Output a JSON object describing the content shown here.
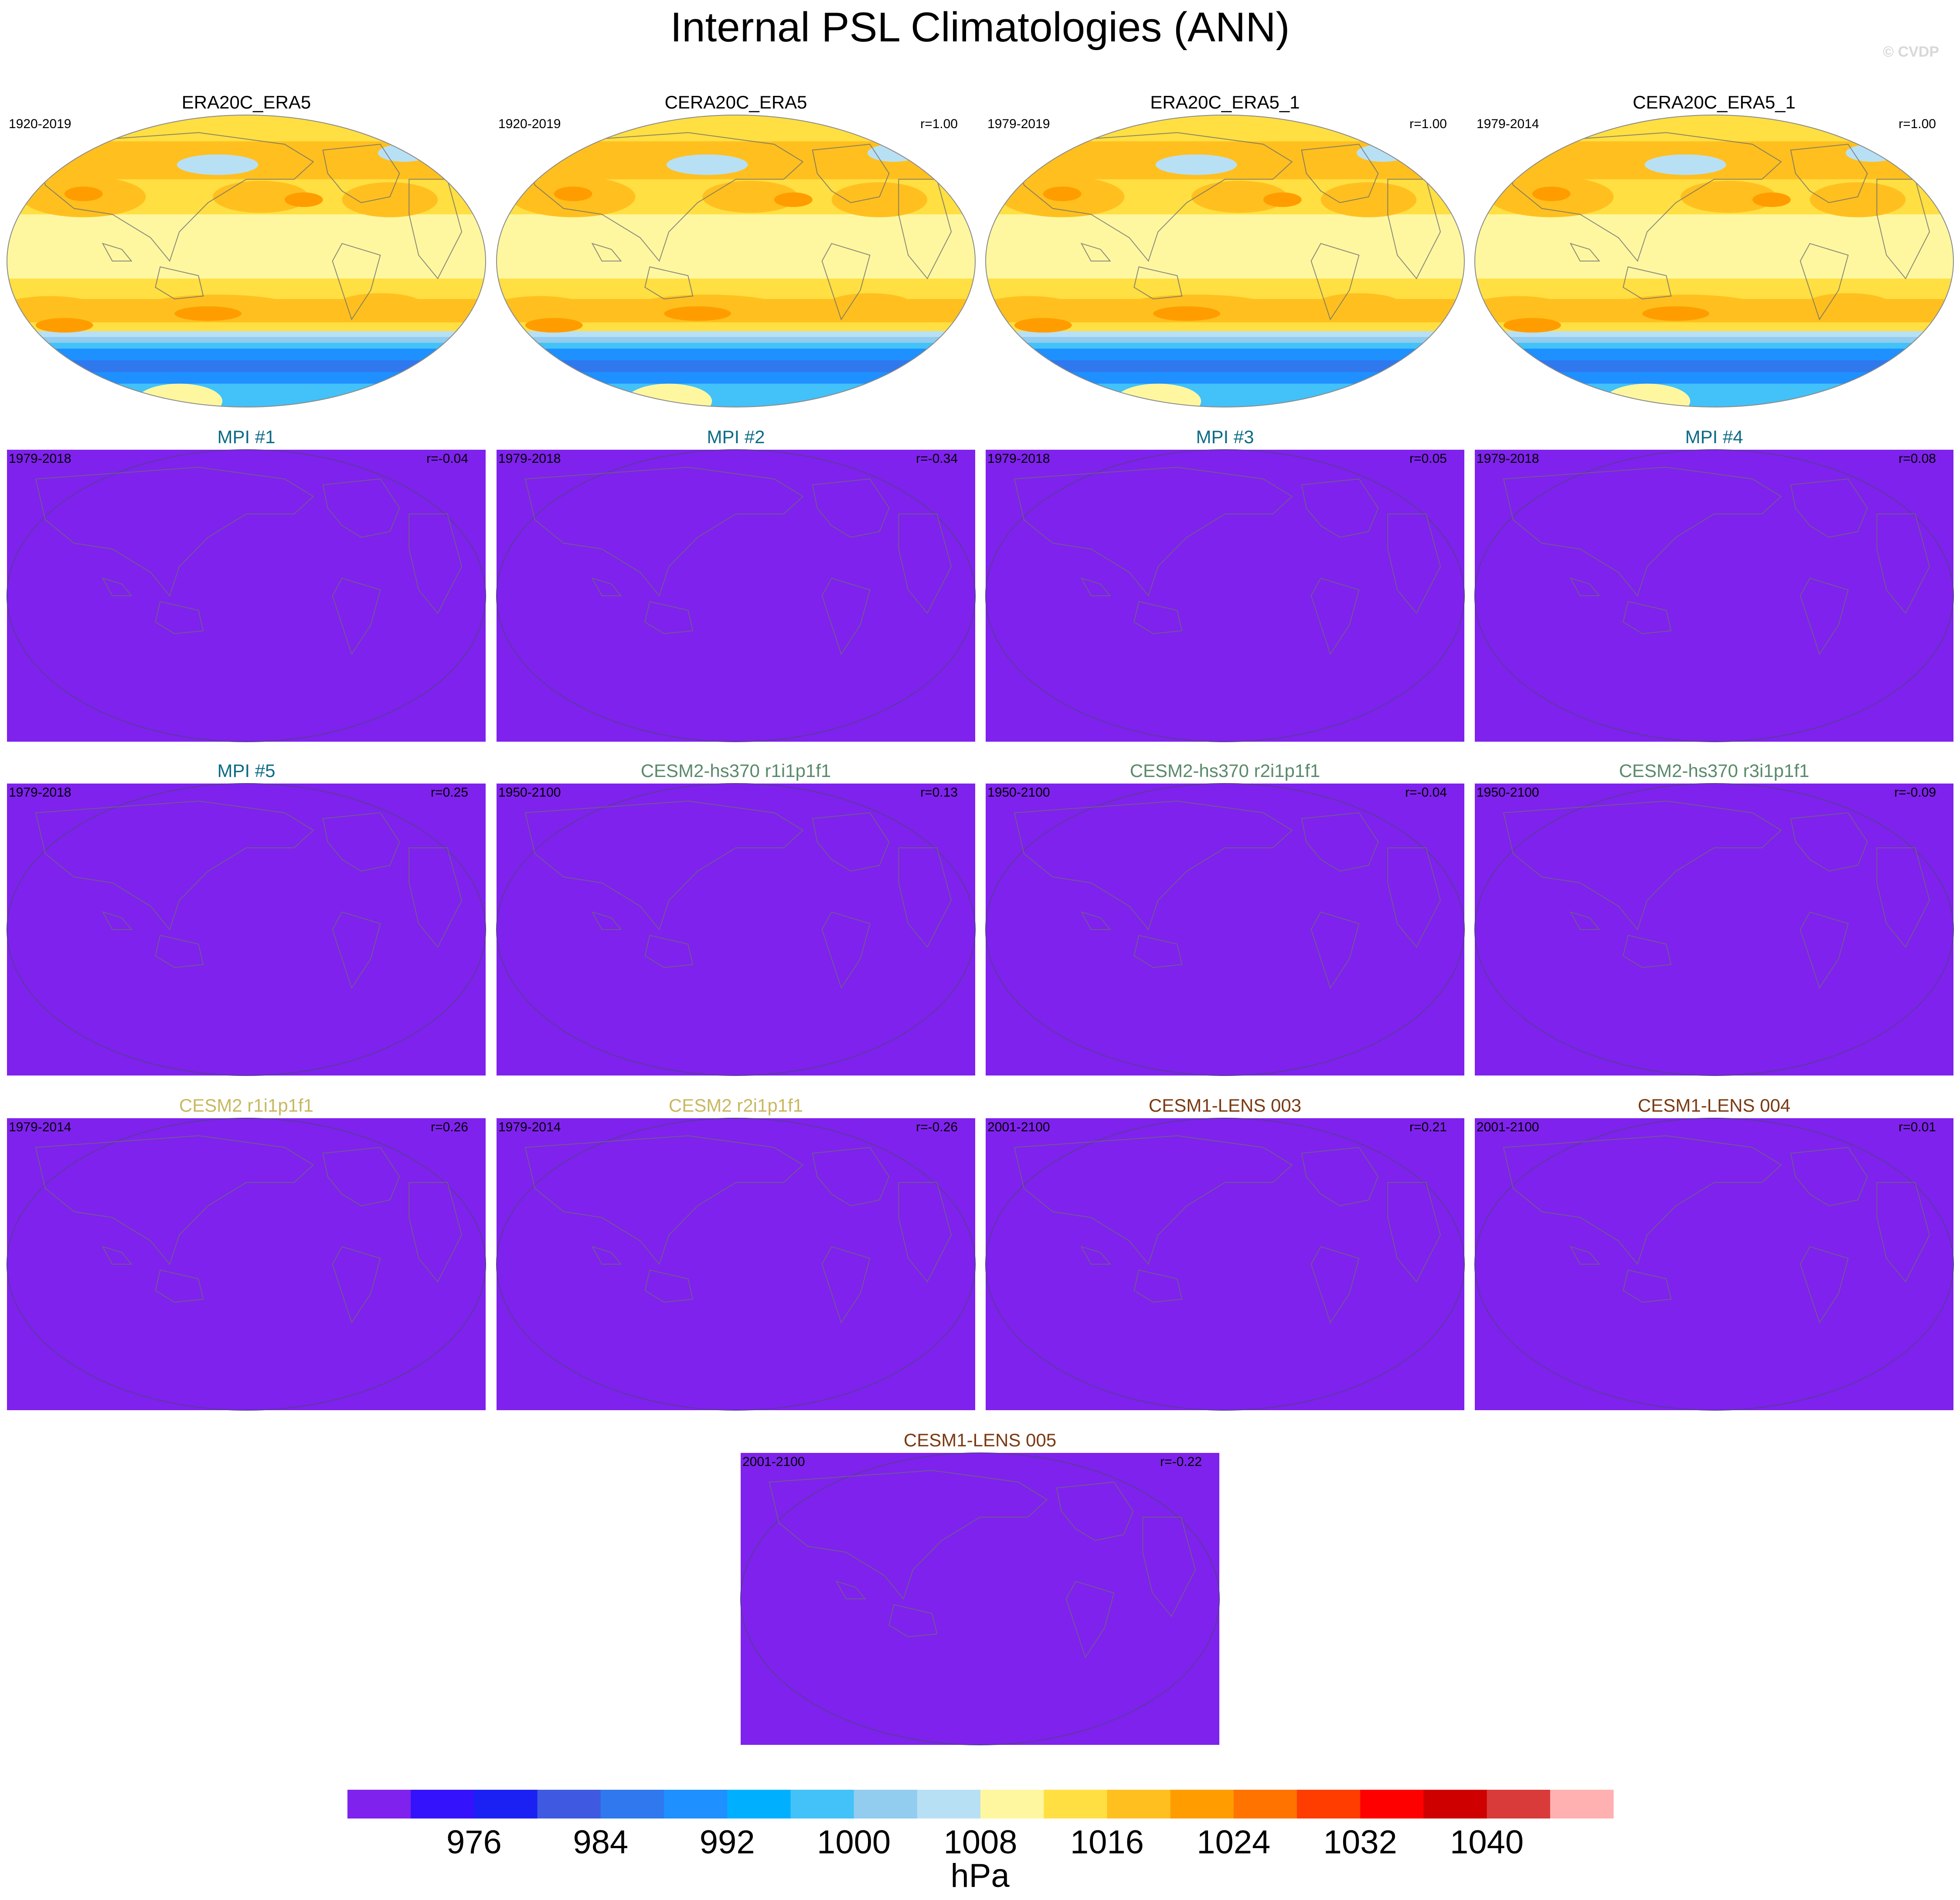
{
  "figure": {
    "title": "Internal PSL Climatologies (ANN)",
    "watermark": "© CVDP"
  },
  "chart_data": {
    "type": "heatmap",
    "title": "Internal PSL Climatologies (ANN)",
    "units": "hPa",
    "colorbar": {
      "label": "hPa",
      "tick_labels": [
        "976",
        "984",
        "992",
        "1000",
        "1008",
        "1016",
        "1024",
        "1032",
        "1040"
      ],
      "colors": [
        "#7f22ed",
        "#3412fc",
        "#1b20f3",
        "#3f5ae1",
        "#2f78ee",
        "#1e90ff",
        "#00b0ff",
        "#42c2f8",
        "#92ccee",
        "#b8e0f5",
        "#fff7a0",
        "#ffdf42",
        "#ffc01f",
        "#ff9d00",
        "#ff7300",
        "#ff3d00",
        "#ff0000",
        "#cf0000",
        "#d93a3a",
        "#ffb0b0"
      ]
    },
    "panels": [
      {
        "title": "ERA20C_ERA5",
        "period": "1920-2019",
        "r": "",
        "title_color": "#000000",
        "field": "observed"
      },
      {
        "title": "CERA20C_ERA5",
        "period": "1920-2019",
        "r": "r=1.00",
        "title_color": "#000000",
        "field": "observed"
      },
      {
        "title": "ERA20C_ERA5_1",
        "period": "1979-2019",
        "r": "r=1.00",
        "title_color": "#000000",
        "field": "observed"
      },
      {
        "title": "CERA20C_ERA5_1",
        "period": "1979-2014",
        "r": "r=1.00",
        "title_color": "#000000",
        "field": "observed"
      },
      {
        "title": "MPI #1",
        "period": "1979-2018",
        "r": "r=-0.04",
        "title_color": "#0c6b86",
        "field": "uniform"
      },
      {
        "title": "MPI #2",
        "period": "1979-2018",
        "r": "r=-0.34",
        "title_color": "#0c6b86",
        "field": "uniform"
      },
      {
        "title": "MPI #3",
        "period": "1979-2018",
        "r": "r=0.05",
        "title_color": "#0c6b86",
        "field": "uniform"
      },
      {
        "title": "MPI #4",
        "period": "1979-2018",
        "r": "r=0.08",
        "title_color": "#0c6b86",
        "field": "uniform"
      },
      {
        "title": "MPI #5",
        "period": "1979-2018",
        "r": "r=0.25",
        "title_color": "#0c6b86",
        "field": "uniform"
      },
      {
        "title": "CESM2-hs370 r1i1p1f1",
        "period": "1950-2100",
        "r": "r=0.13",
        "title_color": "#5a8a6a",
        "field": "uniform"
      },
      {
        "title": "CESM2-hs370 r2i1p1f1",
        "period": "1950-2100",
        "r": "r=-0.04",
        "title_color": "#5a8a6a",
        "field": "uniform"
      },
      {
        "title": "CESM2-hs370 r3i1p1f1",
        "period": "1950-2100",
        "r": "r=-0.09",
        "title_color": "#5a8a6a",
        "field": "uniform"
      },
      {
        "title": "CESM2 r1i1p1f1",
        "period": "1979-2014",
        "r": "r=0.26",
        "title_color": "#c8b860",
        "field": "uniform"
      },
      {
        "title": "CESM2 r2i1p1f1",
        "period": "1979-2014",
        "r": "r=-0.26",
        "title_color": "#c8b860",
        "field": "uniform"
      },
      {
        "title": "CESM1-LENS 003",
        "period": "2001-2100",
        "r": "r=0.21",
        "title_color": "#7a3a12",
        "field": "uniform"
      },
      {
        "title": "CESM1-LENS 004",
        "period": "2001-2100",
        "r": "r=0.01",
        "title_color": "#7a3a12",
        "field": "uniform"
      },
      {
        "title": "CESM1-LENS 005",
        "period": "2001-2100",
        "r": "r=-0.22",
        "title_color": "#7a3a12",
        "field": "uniform"
      }
    ],
    "uniform_fill_color": "#7f22ed",
    "land_outline_color": "#6e6e6e"
  }
}
